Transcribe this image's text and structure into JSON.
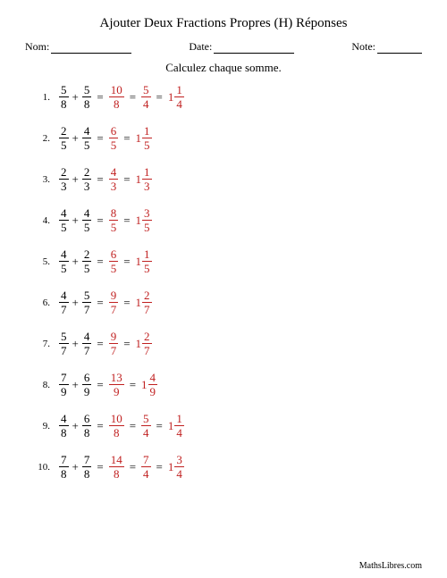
{
  "colors": {
    "highlight": "#c02020",
    "text": "#000000",
    "background": "#ffffff"
  },
  "title": "Ajouter Deux Fractions Propres (H) Réponses",
  "header": {
    "name_label": "Nom:",
    "date_label": "Date:",
    "note_label": "Note:",
    "name_line_width": 90,
    "date_line_width": 90,
    "note_line_width": 50
  },
  "instruction": "Calculez chaque somme.",
  "problems": [
    {
      "n": "1.",
      "a": {
        "num": "5",
        "den": "8"
      },
      "b": {
        "num": "5",
        "den": "8"
      },
      "sum": {
        "num": "10",
        "den": "8"
      },
      "simp": {
        "num": "5",
        "den": "4"
      },
      "mix": {
        "w": "1",
        "num": "1",
        "den": "4"
      }
    },
    {
      "n": "2.",
      "a": {
        "num": "2",
        "den": "5"
      },
      "b": {
        "num": "4",
        "den": "5"
      },
      "sum": {
        "num": "6",
        "den": "5"
      },
      "mix": {
        "w": "1",
        "num": "1",
        "den": "5"
      }
    },
    {
      "n": "3.",
      "a": {
        "num": "2",
        "den": "3"
      },
      "b": {
        "num": "2",
        "den": "3"
      },
      "sum": {
        "num": "4",
        "den": "3"
      },
      "mix": {
        "w": "1",
        "num": "1",
        "den": "3"
      }
    },
    {
      "n": "4.",
      "a": {
        "num": "4",
        "den": "5"
      },
      "b": {
        "num": "4",
        "den": "5"
      },
      "sum": {
        "num": "8",
        "den": "5"
      },
      "mix": {
        "w": "1",
        "num": "3",
        "den": "5"
      }
    },
    {
      "n": "5.",
      "a": {
        "num": "4",
        "den": "5"
      },
      "b": {
        "num": "2",
        "den": "5"
      },
      "sum": {
        "num": "6",
        "den": "5"
      },
      "mix": {
        "w": "1",
        "num": "1",
        "den": "5"
      }
    },
    {
      "n": "6.",
      "a": {
        "num": "4",
        "den": "7"
      },
      "b": {
        "num": "5",
        "den": "7"
      },
      "sum": {
        "num": "9",
        "den": "7"
      },
      "mix": {
        "w": "1",
        "num": "2",
        "den": "7"
      }
    },
    {
      "n": "7.",
      "a": {
        "num": "5",
        "den": "7"
      },
      "b": {
        "num": "4",
        "den": "7"
      },
      "sum": {
        "num": "9",
        "den": "7"
      },
      "mix": {
        "w": "1",
        "num": "2",
        "den": "7"
      }
    },
    {
      "n": "8.",
      "a": {
        "num": "7",
        "den": "9"
      },
      "b": {
        "num": "6",
        "den": "9"
      },
      "sum": {
        "num": "13",
        "den": "9"
      },
      "mix": {
        "w": "1",
        "num": "4",
        "den": "9"
      }
    },
    {
      "n": "9.",
      "a": {
        "num": "4",
        "den": "8"
      },
      "b": {
        "num": "6",
        "den": "8"
      },
      "sum": {
        "num": "10",
        "den": "8"
      },
      "simp": {
        "num": "5",
        "den": "4"
      },
      "mix": {
        "w": "1",
        "num": "1",
        "den": "4"
      }
    },
    {
      "n": "10.",
      "a": {
        "num": "7",
        "den": "8"
      },
      "b": {
        "num": "7",
        "den": "8"
      },
      "sum": {
        "num": "14",
        "den": "8"
      },
      "simp": {
        "num": "7",
        "den": "4"
      },
      "mix": {
        "w": "1",
        "num": "3",
        "den": "4"
      }
    }
  ],
  "symbols": {
    "plus": "+",
    "equals": "="
  },
  "footer": "MathsLibres.com"
}
